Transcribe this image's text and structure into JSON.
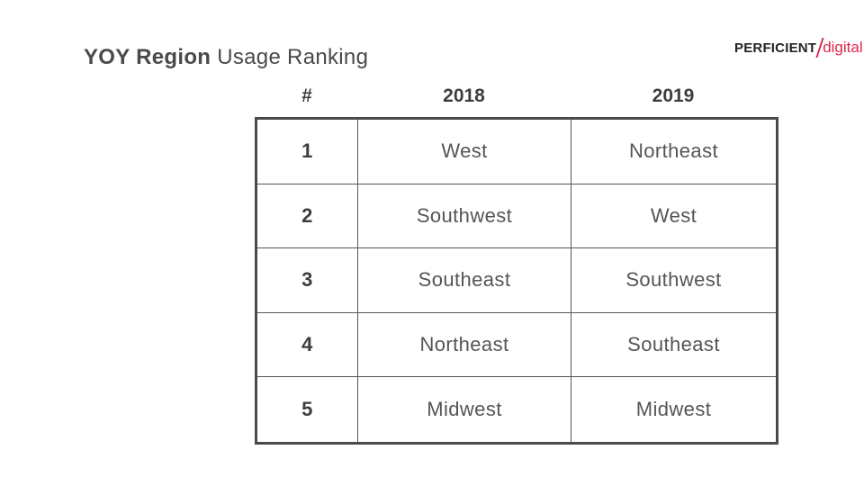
{
  "title": {
    "bold": "YOY Region",
    "rest": " Usage Ranking"
  },
  "logo": {
    "part1": "PERFICIENT",
    "part2": "digital",
    "accent_color": "#e0264b"
  },
  "table": {
    "headers": [
      "#",
      "2018",
      "2019"
    ],
    "rows": [
      {
        "rank": "1",
        "y2018": "West",
        "y2019": "Northeast"
      },
      {
        "rank": "2",
        "y2018": "Southwest",
        "y2019": "West"
      },
      {
        "rank": "3",
        "y2018": "Southeast",
        "y2019": "Southwest"
      },
      {
        "rank": "4",
        "y2018": "Northeast",
        "y2019": "Southeast"
      },
      {
        "rank": "5",
        "y2018": "Midwest",
        "y2019": "Midwest"
      }
    ]
  }
}
